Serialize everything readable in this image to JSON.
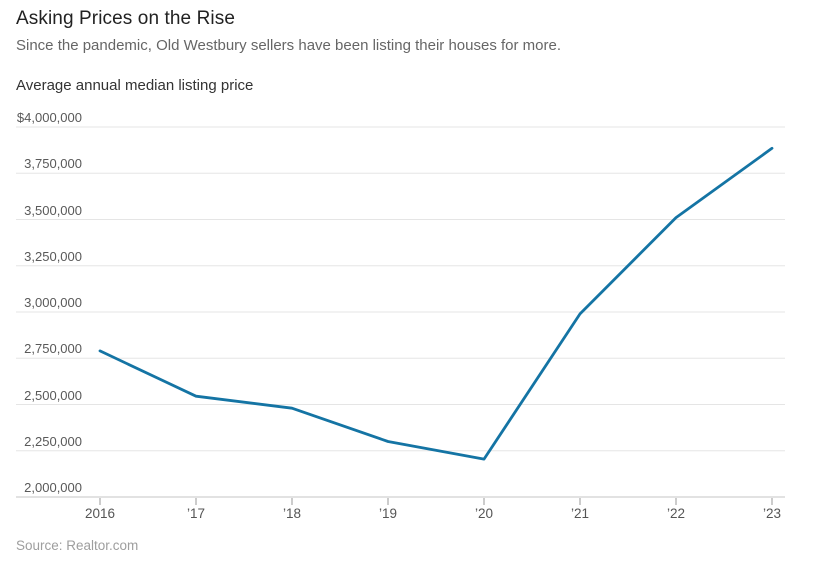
{
  "header": {
    "title": "Asking Prices on the Rise",
    "subtitle": "Since the pandemic, Old Westbury sellers have been listing their houses for more."
  },
  "chart": {
    "axis_title": "Average annual median listing price",
    "source": "Source: Realtor.com"
  },
  "chart_data": {
    "type": "line",
    "title": "Asking Prices on the Rise",
    "subtitle": "Since the pandemic, Old Westbury sellers have been listing their houses for more.",
    "series_name": "Average annual median listing price",
    "x": [
      2016,
      2017,
      2018,
      2019,
      2020,
      2021,
      2022,
      2023
    ],
    "xtick_labels": [
      "2016",
      "’17",
      "’18",
      "’19",
      "’20",
      "’21",
      "’22",
      "’23"
    ],
    "values": [
      2790000,
      2545000,
      2480000,
      2300000,
      2205000,
      2990000,
      3510000,
      3885000
    ],
    "ylim": [
      2000000,
      4000000
    ],
    "ytick_interval": 250000,
    "ytick_labels_top_to_bottom": [
      "$4,000,000",
      "3,750,000",
      "3,500,000",
      "3,250,000",
      "3,000,000",
      "2,750,000",
      "2,500,000",
      "2,250,000",
      "2,000,000"
    ],
    "grid": "horizontal",
    "legend": "none",
    "source": "Source: Realtor.com"
  },
  "colors": {
    "line": "#1474a4",
    "gridline": "#e5e5e5",
    "baseline": "#c6c6c6",
    "tick": "#999999",
    "title_text": "#222222",
    "subtitle_text": "#666666",
    "ytick_text": "#595959",
    "source_text": "#9e9e9e"
  }
}
